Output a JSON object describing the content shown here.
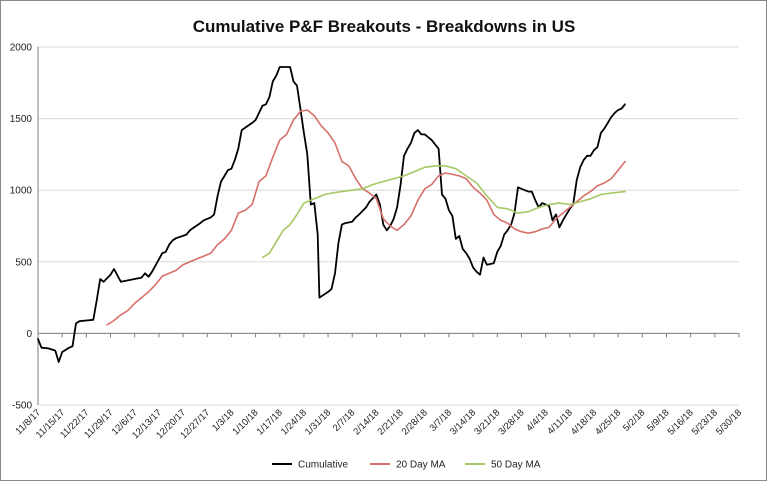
{
  "chart_data": {
    "type": "line",
    "title": "Cumulative P&F Breakouts - Breakdowns in US",
    "xlabel": "",
    "ylabel": "",
    "ylim": [
      -500,
      2000
    ],
    "yticks": [
      -500,
      0,
      500,
      1000,
      1500,
      2000
    ],
    "x_start": "2017-11-08",
    "x_end": "2018-05-30",
    "x_ticks": [
      "11/8/17",
      "11/15/17",
      "11/22/17",
      "11/29/17",
      "12/6/17",
      "12/13/17",
      "12/20/17",
      "12/27/17",
      "1/3/18",
      "1/10/18",
      "1/17/18",
      "1/24/18",
      "1/31/18",
      "2/7/18",
      "2/14/18",
      "2/21/18",
      "2/28/18",
      "3/7/18",
      "3/14/18",
      "3/21/18",
      "3/28/18",
      "4/4/18",
      "4/11/18",
      "4/18/18",
      "4/25/18",
      "5/2/18",
      "5/9/18",
      "5/16/18",
      "5/23/18",
      "5/30/18"
    ],
    "legend_position": "bottom",
    "series": [
      {
        "name": "Cumulative",
        "color": "#000000",
        "points": [
          [
            0,
            -40
          ],
          [
            1,
            -100
          ],
          [
            3,
            -105
          ],
          [
            5,
            -120
          ],
          [
            6,
            -200
          ],
          [
            7,
            -130
          ],
          [
            9,
            -100
          ],
          [
            10,
            -90
          ],
          [
            11,
            70
          ],
          [
            12,
            85
          ],
          [
            14,
            90
          ],
          [
            16,
            95
          ],
          [
            17,
            230
          ],
          [
            18,
            380
          ],
          [
            19,
            360
          ],
          [
            21,
            410
          ],
          [
            22,
            450
          ],
          [
            24,
            360
          ],
          [
            26,
            370
          ],
          [
            28,
            380
          ],
          [
            30,
            390
          ],
          [
            31,
            420
          ],
          [
            32,
            395
          ],
          [
            33,
            430
          ],
          [
            36,
            560
          ],
          [
            37,
            570
          ],
          [
            38,
            620
          ],
          [
            39,
            650
          ],
          [
            40,
            665
          ],
          [
            43,
            690
          ],
          [
            44,
            720
          ],
          [
            47,
            770
          ],
          [
            48,
            790
          ],
          [
            50,
            810
          ],
          [
            51,
            830
          ],
          [
            52,
            960
          ],
          [
            53,
            1060
          ],
          [
            54,
            1100
          ],
          [
            55,
            1140
          ],
          [
            56,
            1150
          ],
          [
            57,
            1210
          ],
          [
            58,
            1290
          ],
          [
            59,
            1420
          ],
          [
            62,
            1470
          ],
          [
            63,
            1490
          ],
          [
            64,
            1540
          ],
          [
            65,
            1590
          ],
          [
            66,
            1600
          ],
          [
            67,
            1650
          ],
          [
            68,
            1760
          ],
          [
            69,
            1800
          ],
          [
            70,
            1860
          ],
          [
            73,
            1860
          ],
          [
            74,
            1760
          ],
          [
            75,
            1730
          ],
          [
            76,
            1570
          ],
          [
            77,
            1400
          ],
          [
            78,
            1250
          ],
          [
            79,
            900
          ],
          [
            80,
            910
          ],
          [
            81,
            690
          ],
          [
            81.5,
            250
          ],
          [
            84,
            290
          ],
          [
            85,
            310
          ],
          [
            86,
            420
          ],
          [
            87,
            630
          ],
          [
            88,
            760
          ],
          [
            89,
            770
          ],
          [
            91,
            780
          ],
          [
            92,
            810
          ],
          [
            93,
            830
          ],
          [
            95,
            880
          ],
          [
            96,
            920
          ],
          [
            98,
            970
          ],
          [
            99,
            900
          ],
          [
            100,
            760
          ],
          [
            101,
            720
          ],
          [
            102,
            750
          ],
          [
            103,
            800
          ],
          [
            104,
            880
          ],
          [
            105,
            1040
          ],
          [
            106,
            1240
          ],
          [
            107,
            1290
          ],
          [
            108,
            1330
          ],
          [
            109,
            1400
          ],
          [
            110,
            1420
          ],
          [
            111,
            1390
          ],
          [
            112,
            1390
          ],
          [
            114,
            1350
          ],
          [
            115,
            1320
          ],
          [
            116,
            1290
          ],
          [
            117,
            970
          ],
          [
            118,
            940
          ],
          [
            119,
            860
          ],
          [
            120,
            820
          ],
          [
            121,
            660
          ],
          [
            122,
            680
          ],
          [
            123,
            590
          ],
          [
            124,
            560
          ],
          [
            125,
            520
          ],
          [
            126,
            460
          ],
          [
            127,
            430
          ],
          [
            128,
            410
          ],
          [
            129,
            530
          ],
          [
            130,
            480
          ],
          [
            132,
            490
          ],
          [
            133,
            570
          ],
          [
            134,
            610
          ],
          [
            135,
            690
          ],
          [
            136,
            720
          ],
          [
            137,
            760
          ],
          [
            138,
            840
          ],
          [
            139,
            1020
          ],
          [
            140,
            1010
          ],
          [
            142,
            990
          ],
          [
            143,
            990
          ],
          [
            144,
            930
          ],
          [
            145,
            880
          ],
          [
            146,
            910
          ],
          [
            147,
            900
          ],
          [
            148,
            890
          ],
          [
            149,
            790
          ],
          [
            150,
            830
          ],
          [
            151,
            740
          ],
          [
            152,
            790
          ],
          [
            154,
            870
          ],
          [
            155,
            900
          ],
          [
            156,
            1070
          ],
          [
            157,
            1160
          ],
          [
            158,
            1210
          ],
          [
            159,
            1240
          ],
          [
            160,
            1240
          ],
          [
            161,
            1280
          ],
          [
            162,
            1300
          ],
          [
            163,
            1400
          ],
          [
            164,
            1430
          ],
          [
            165,
            1470
          ],
          [
            166,
            1510
          ],
          [
            167,
            1540
          ],
          [
            168,
            1560
          ],
          [
            169,
            1570
          ],
          [
            170,
            1600
          ]
        ]
      },
      {
        "name": "20 Day MA",
        "color": "#d6706a",
        "points": [
          [
            20,
            60
          ],
          [
            22,
            90
          ],
          [
            24,
            130
          ],
          [
            26,
            160
          ],
          [
            28,
            210
          ],
          [
            30,
            250
          ],
          [
            32,
            290
          ],
          [
            34,
            340
          ],
          [
            36,
            400
          ],
          [
            38,
            420
          ],
          [
            40,
            440
          ],
          [
            42,
            480
          ],
          [
            44,
            500
          ],
          [
            46,
            520
          ],
          [
            48,
            540
          ],
          [
            50,
            560
          ],
          [
            52,
            620
          ],
          [
            54,
            660
          ],
          [
            56,
            720
          ],
          [
            58,
            840
          ],
          [
            60,
            860
          ],
          [
            62,
            900
          ],
          [
            64,
            1060
          ],
          [
            66,
            1100
          ],
          [
            68,
            1230
          ],
          [
            70,
            1350
          ],
          [
            72,
            1390
          ],
          [
            74,
            1490
          ],
          [
            76,
            1550
          ],
          [
            78,
            1560
          ],
          [
            80,
            1520
          ],
          [
            82,
            1450
          ],
          [
            84,
            1400
          ],
          [
            86,
            1330
          ],
          [
            88,
            1200
          ],
          [
            90,
            1170
          ],
          [
            92,
            1080
          ],
          [
            94,
            1010
          ],
          [
            96,
            980
          ],
          [
            98,
            940
          ],
          [
            100,
            800
          ],
          [
            102,
            750
          ],
          [
            104,
            720
          ],
          [
            106,
            760
          ],
          [
            108,
            820
          ],
          [
            110,
            930
          ],
          [
            112,
            1010
          ],
          [
            114,
            1040
          ],
          [
            116,
            1100
          ],
          [
            118,
            1120
          ],
          [
            120,
            1110
          ],
          [
            122,
            1100
          ],
          [
            124,
            1080
          ],
          [
            126,
            1020
          ],
          [
            128,
            980
          ],
          [
            130,
            930
          ],
          [
            132,
            830
          ],
          [
            134,
            790
          ],
          [
            136,
            770
          ],
          [
            138,
            730
          ],
          [
            140,
            710
          ],
          [
            142,
            700
          ],
          [
            144,
            710
          ],
          [
            146,
            730
          ],
          [
            148,
            740
          ],
          [
            150,
            800
          ],
          [
            152,
            840
          ],
          [
            154,
            880
          ],
          [
            156,
            920
          ],
          [
            158,
            960
          ],
          [
            160,
            990
          ],
          [
            162,
            1030
          ],
          [
            164,
            1050
          ],
          [
            166,
            1080
          ],
          [
            168,
            1140
          ],
          [
            170,
            1200
          ]
        ]
      },
      {
        "name": "50 Day MA",
        "color": "#a6c865",
        "points": [
          [
            65,
            530
          ],
          [
            67,
            560
          ],
          [
            69,
            640
          ],
          [
            71,
            720
          ],
          [
            73,
            760
          ],
          [
            75,
            830
          ],
          [
            77,
            910
          ],
          [
            79,
            930
          ],
          [
            81,
            950
          ],
          [
            83,
            970
          ],
          [
            85,
            980
          ],
          [
            88,
            990
          ],
          [
            91,
            1000
          ],
          [
            94,
            1010
          ],
          [
            97,
            1040
          ],
          [
            100,
            1060
          ],
          [
            103,
            1080
          ],
          [
            106,
            1100
          ],
          [
            109,
            1130
          ],
          [
            112,
            1160
          ],
          [
            115,
            1170
          ],
          [
            118,
            1170
          ],
          [
            121,
            1150
          ],
          [
            124,
            1100
          ],
          [
            127,
            1050
          ],
          [
            130,
            960
          ],
          [
            133,
            880
          ],
          [
            136,
            870
          ],
          [
            139,
            840
          ],
          [
            142,
            850
          ],
          [
            145,
            880
          ],
          [
            148,
            900
          ],
          [
            151,
            910
          ],
          [
            154,
            900
          ],
          [
            157,
            920
          ],
          [
            160,
            940
          ],
          [
            163,
            970
          ],
          [
            166,
            980
          ],
          [
            170,
            990
          ]
        ]
      }
    ]
  }
}
